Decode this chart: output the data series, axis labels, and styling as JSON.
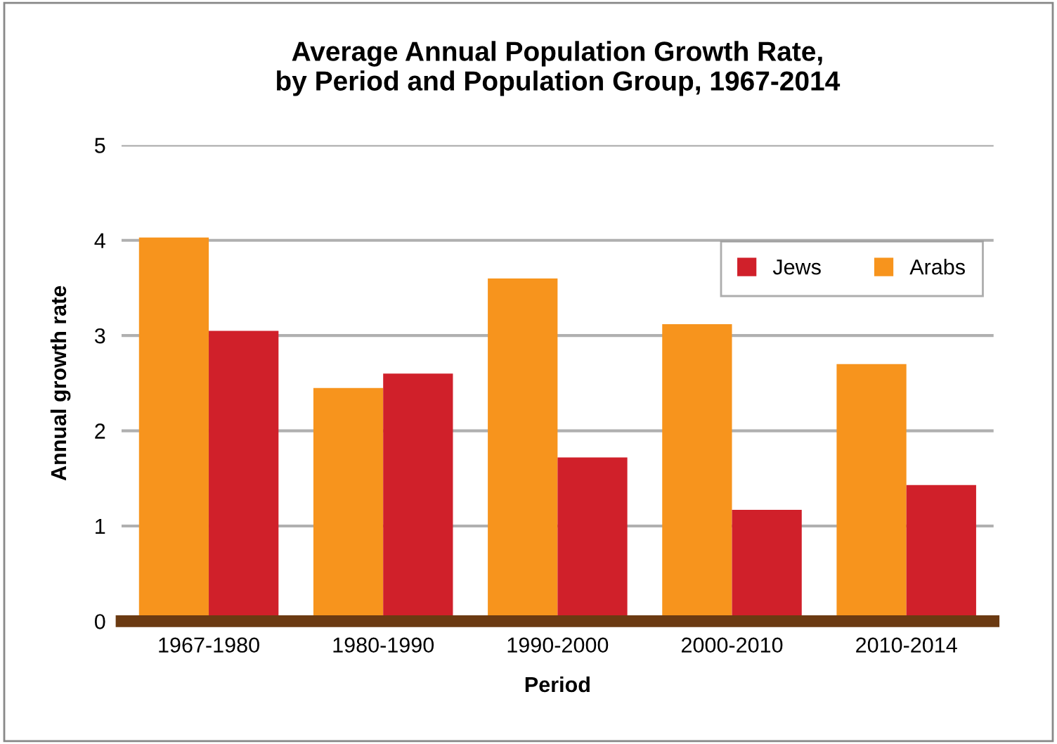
{
  "chart_data": {
    "type": "bar",
    "title": "Average Annual Population Growth Rate,\nby Period and Population Group, 1967-2014",
    "xlabel": "Period",
    "ylabel": "Annual growth rate",
    "categories": [
      "1967-1980",
      "1980-1990",
      "1990-2000",
      "2000-2010",
      "2010-2014"
    ],
    "series": [
      {
        "name": "Arabs",
        "color": "#f7941d",
        "values": [
          4.03,
          2.45,
          3.6,
          3.12,
          2.7
        ]
      },
      {
        "name": "Jews",
        "color": "#d0202a",
        "values": [
          3.05,
          2.6,
          1.72,
          1.17,
          1.43
        ]
      }
    ],
    "ylim": [
      0,
      5
    ],
    "yticks": [
      0,
      1,
      2,
      3,
      4,
      5
    ],
    "grid": "y",
    "legend": "top right"
  }
}
